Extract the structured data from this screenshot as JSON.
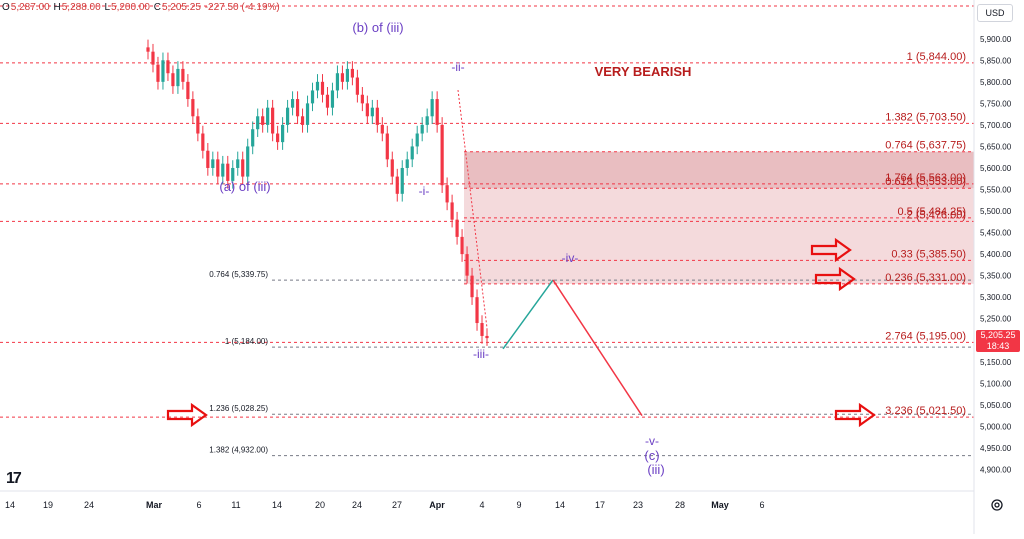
{
  "header": {
    "ohlc": [
      {
        "k": "O",
        "v": "5,287.00"
      },
      {
        "k": "H",
        "v": "5,288.00"
      },
      {
        "k": "L",
        "v": "5,200.00"
      },
      {
        "k": "C",
        "v": "5,205.25"
      }
    ],
    "change": "-227.50 (-4.19%)"
  },
  "currency": "USD",
  "last_price": {
    "value": "5,205.25",
    "timer": "18:43"
  },
  "chart_data": {
    "type": "line",
    "y_axis": {
      "range": [
        4850,
        5990
      ],
      "ticks": [
        "4,900.00",
        "4,950.00",
        "5,000.00",
        "5,050.00",
        "5,100.00",
        "5,150.00",
        "5,250.00",
        "5,300.00",
        "5,350.00",
        "5,400.00",
        "5,450.00",
        "5,500.00",
        "5,550.00",
        "5,600.00",
        "5,650.00",
        "5,700.00",
        "5,750.00",
        "5,800.00",
        "5,850.00",
        "5,900.00"
      ]
    },
    "x_axis": {
      "ticks": [
        "14",
        "19",
        "24",
        "Mar",
        "6",
        "11",
        "14",
        "20",
        "24",
        "27",
        "Apr",
        "4",
        "9",
        "14",
        "17",
        "23",
        "28",
        "May",
        "6"
      ]
    },
    "annotation_title": "VERY BEARISH",
    "wave_labels": [
      {
        "label": "(b) of (iii)",
        "color": "#6b3fc4"
      },
      {
        "label": "(a) of (iii)",
        "color": "#6b3fc4"
      },
      {
        "label": "-ii-",
        "color": "#6b3fc4"
      },
      {
        "label": "-i-",
        "color": "#6b3fc4"
      },
      {
        "label": "-iii-",
        "color": "#6b3fc4"
      },
      {
        "label": "-iv-",
        "color": "#6b3fc4"
      },
      {
        "label": "-v-",
        "color": "#6b3fc4"
      },
      {
        "label": "(c)",
        "color": "#6b3fc4"
      },
      {
        "label": "(iii)",
        "color": "#6b3fc4"
      }
    ],
    "right_levels": [
      {
        "label": "1 (5,844.00)",
        "price": 5844
      },
      {
        "label": "1.382 (5,703.50)",
        "price": 5703.5
      },
      {
        "label": "0.764 (5,637.75)",
        "price": 5637.75
      },
      {
        "label": "1.764 (5,563.00)",
        "price": 5563
      },
      {
        "label": "0.618 (5,553.00)",
        "price": 5553
      },
      {
        "label": "2 (5,476.00)",
        "price": 5476
      },
      {
        "label": "0.5 (5,484.25)",
        "price": 5484.25
      },
      {
        "label": "0.33 (5,385.50)",
        "price": 5385.5
      },
      {
        "label": "0.236 (5,331.00)",
        "price": 5331
      },
      {
        "label": "2.764 (5,195.00)",
        "price": 5195
      },
      {
        "label": "3.236 (5,021.50)",
        "price": 5021.5
      }
    ],
    "left_levels": [
      {
        "label": "0.764 (5,339.75)",
        "price": 5339.75
      },
      {
        "label": "1 (5,184.00)",
        "price": 5184
      },
      {
        "label": "1.236 (5,028.25)",
        "price": 5028.25
      },
      {
        "label": "1.382 (4,932.00)",
        "price": 4932
      }
    ],
    "resistance_zone": {
      "from": 5331,
      "to": 5637.75
    },
    "projection": [
      {
        "price": 5180,
        "color": "#26a69a"
      },
      {
        "price": 5340,
        "color": "#f23645"
      },
      {
        "price": 5025
      }
    ],
    "candles": [
      5870,
      5840,
      5800,
      5850,
      5820,
      5790,
      5830,
      5800,
      5760,
      5720,
      5680,
      5640,
      5600,
      5620,
      5580,
      5610,
      5570,
      5600,
      5620,
      5580,
      5650,
      5690,
      5720,
      5700,
      5740,
      5680,
      5660,
      5700,
      5740,
      5760,
      5720,
      5700,
      5750,
      5780,
      5800,
      5770,
      5740,
      5780,
      5820,
      5800,
      5830,
      5810,
      5770,
      5750,
      5720,
      5740,
      5700,
      5680,
      5620,
      5580,
      5540,
      5600,
      5620,
      5650,
      5680,
      5700,
      5720,
      5760,
      5700,
      5560,
      5520,
      5480,
      5440,
      5400,
      5350,
      5300,
      5240,
      5210,
      5205
    ]
  }
}
